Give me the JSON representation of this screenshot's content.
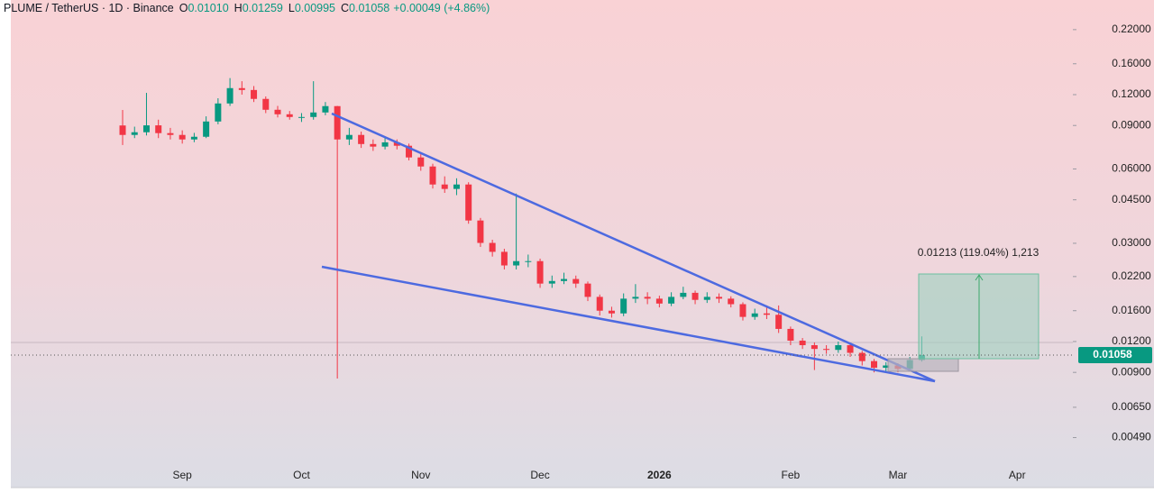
{
  "chart_data": {
    "type": "candlestick",
    "header": {
      "symbol": "PLUME / TetherUS · 1D · Binance",
      "fields": [
        {
          "key": "O",
          "value": "0.01010"
        },
        {
          "key": "H",
          "value": "0.01259"
        },
        {
          "key": "L",
          "value": "0.00995"
        },
        {
          "key": "C",
          "value": "0.01058"
        }
      ],
      "change": "+0.00049 (+4.86%)"
    },
    "annotation": "0.01213 (119.04%) 1,213",
    "price_tag": "0.01058",
    "log_scale": true,
    "up_color": "#089981",
    "down_color": "#f23645",
    "ylim": [
      0.0031,
      0.29
    ],
    "yticks": [
      {
        "value": 0.22,
        "label": "0.22000"
      },
      {
        "value": 0.16,
        "label": "0.16000"
      },
      {
        "value": 0.12,
        "label": "0.12000"
      },
      {
        "value": 0.09,
        "label": "0.09000"
      },
      {
        "value": 0.06,
        "label": "0.06000"
      },
      {
        "value": 0.045,
        "label": "0.04500"
      },
      {
        "value": 0.03,
        "label": "0.03000"
      },
      {
        "value": 0.022,
        "label": "0.02200"
      },
      {
        "value": 0.016,
        "label": "0.01600"
      },
      {
        "value": 0.012,
        "label": "0.01200"
      },
      {
        "value": 0.009,
        "label": "0.00900"
      },
      {
        "value": 0.0065,
        "label": "0.00650"
      },
      {
        "value": 0.0049,
        "label": "0.00490"
      }
    ],
    "categories": [
      null,
      null,
      null,
      null,
      null,
      "Sep",
      null,
      null,
      null,
      null,
      null,
      null,
      null,
      null,
      null,
      "Oct",
      null,
      null,
      null,
      null,
      null,
      null,
      null,
      null,
      null,
      "Nov",
      null,
      null,
      null,
      null,
      null,
      null,
      null,
      null,
      null,
      "Dec",
      null,
      null,
      null,
      null,
      null,
      null,
      null,
      null,
      null,
      "2026",
      null,
      null,
      null,
      null,
      null,
      null,
      null,
      null,
      null,
      null,
      "Feb",
      null,
      null,
      null,
      null,
      null,
      null,
      null,
      null,
      "Mar",
      null,
      null,
      null,
      null,
      null,
      null,
      null,
      null,
      null,
      "Apr",
      null,
      null,
      null,
      null
    ],
    "open": [
      0.09,
      0.0824,
      0.0845,
      0.0901,
      0.0838,
      0.0824,
      0.079,
      0.081,
      0.0934,
      0.1105,
      0.1275,
      0.1253,
      0.1153,
      0.1042,
      0.0999,
      0.0974,
      0.0974,
      0.1016,
      0.1078,
      0.079,
      0.0824,
      0.0757,
      0.0739,
      0.0769,
      0.0745,
      0.0668,
      0.0614,
      0.0519,
      0.0498,
      0.0519,
      0.0371,
      0.0301,
      0.0277,
      0.0244,
      0.0254,
      0.0254,
      0.0206,
      0.0211,
      0.0215,
      0.0206,
      0.0182,
      0.016,
      0.0156,
      0.0179,
      0.0182,
      0.0179,
      0.0171,
      0.0182,
      0.0189,
      0.0177,
      0.0182,
      0.0179,
      0.017,
      0.0151,
      0.0156,
      0.0154,
      0.0135,
      0.0121,
      0.0116,
      0.0112,
      0.0111,
      0.0116,
      0.0108,
      0.01,
      0.0094,
      0.0096,
      0.0093,
      0.0101,
      null,
      null,
      null,
      null,
      null,
      null,
      null,
      null,
      null,
      null,
      null,
      null
    ],
    "high": [
      0.104,
      0.089,
      0.122,
      0.095,
      0.088,
      0.086,
      0.084,
      0.098,
      0.116,
      0.14,
      0.136,
      0.13,
      0.118,
      0.108,
      0.103,
      0.101,
      0.136,
      0.112,
      0.108,
      0.088,
      0.085,
      0.079,
      0.08,
      0.079,
      0.076,
      0.069,
      0.063,
      0.056,
      0.055,
      0.053,
      0.038,
      0.031,
      0.0285,
      0.0477,
      0.027,
      0.026,
      0.0222,
      0.0228,
      0.0222,
      0.021,
      0.0186,
      0.0166,
      0.0188,
      0.0205,
      0.019,
      0.0184,
      0.019,
      0.02,
      0.0193,
      0.019,
      0.0188,
      0.0183,
      0.0173,
      0.0163,
      0.0168,
      0.0168,
      0.0138,
      0.0124,
      0.0119,
      0.0116,
      0.012,
      0.0118,
      0.011,
      0.0102,
      0.0099,
      0.0098,
      0.0104,
      0.01259,
      null,
      null,
      null,
      null,
      null,
      null,
      null,
      null,
      null,
      null,
      null,
      null
    ],
    "low": [
      0.075,
      0.08,
      0.082,
      0.08,
      0.079,
      0.076,
      0.077,
      0.08,
      0.091,
      0.108,
      0.12,
      0.112,
      0.101,
      0.097,
      0.095,
      0.093,
      0.095,
      0.099,
      0.0085,
      0.075,
      0.073,
      0.071,
      0.072,
      0.072,
      0.065,
      0.059,
      0.05,
      0.048,
      0.047,
      0.036,
      0.029,
      0.0265,
      0.0235,
      0.0235,
      0.024,
      0.0198,
      0.0198,
      0.0205,
      0.0198,
      0.0175,
      0.0153,
      0.015,
      0.0152,
      0.0172,
      0.017,
      0.0165,
      0.0167,
      0.0178,
      0.017,
      0.0172,
      0.0172,
      0.0165,
      0.0146,
      0.0147,
      0.0148,
      0.013,
      0.0116,
      0.0112,
      0.0092,
      0.0107,
      0.0108,
      0.0104,
      0.0096,
      0.009,
      0.0091,
      0.009,
      0.0091,
      0.00995,
      null,
      null,
      null,
      null,
      null,
      null,
      null,
      null,
      null,
      null,
      null,
      null
    ],
    "close": [
      0.0824,
      0.0845,
      0.0901,
      0.0838,
      0.0824,
      0.079,
      0.081,
      0.0934,
      0.1105,
      0.1275,
      0.1253,
      0.1153,
      0.1042,
      0.0999,
      0.0974,
      0.0974,
      0.1016,
      0.1078,
      0.079,
      0.0824,
      0.0757,
      0.0739,
      0.0769,
      0.0745,
      0.0668,
      0.0614,
      0.0519,
      0.0498,
      0.0519,
      0.0371,
      0.0301,
      0.0277,
      0.0244,
      0.0254,
      0.0254,
      0.0206,
      0.0211,
      0.0215,
      0.0206,
      0.0182,
      0.016,
      0.0156,
      0.0179,
      0.0182,
      0.0179,
      0.0171,
      0.0182,
      0.0189,
      0.0177,
      0.0182,
      0.0179,
      0.017,
      0.0151,
      0.0156,
      0.0154,
      0.0135,
      0.0121,
      0.0116,
      0.0112,
      0.0111,
      0.0116,
      0.0108,
      0.01,
      0.0094,
      0.0096,
      0.0093,
      0.0101,
      0.01058,
      null,
      null,
      null,
      null,
      null,
      null,
      null,
      null,
      null,
      null,
      null,
      null
    ]
  }
}
